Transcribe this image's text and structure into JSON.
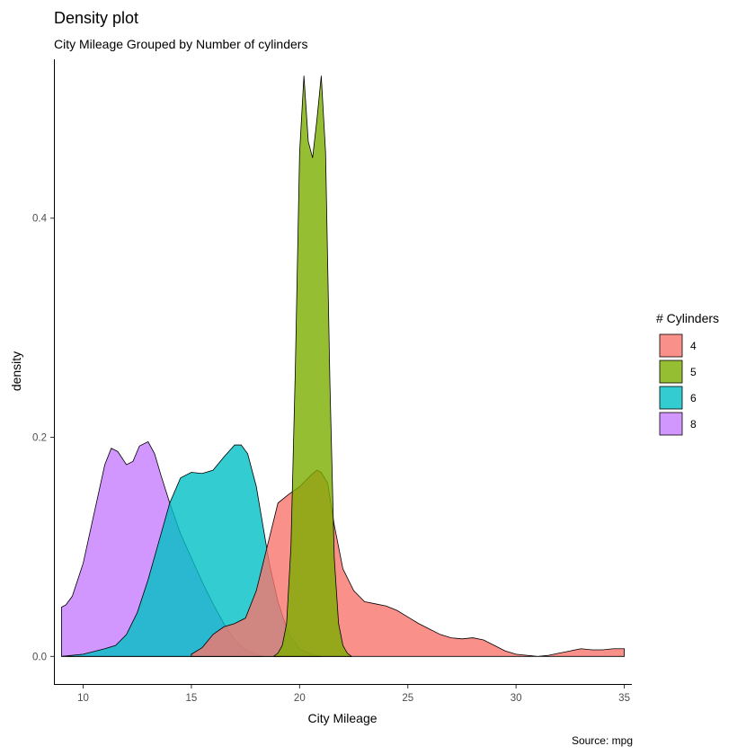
{
  "chart_data": {
    "type": "area",
    "title": "Density plot",
    "subtitle": "City Mileage Grouped by Number of cylinders",
    "xlabel": "City Mileage",
    "ylabel": "density",
    "caption": "Source: mpg",
    "xlim": [
      8.65,
      35.35
    ],
    "ylim": [
      -0.026,
      0.545
    ],
    "xticks": [
      10,
      15,
      20,
      25,
      30,
      35
    ],
    "yticks": [
      0.0,
      0.2,
      0.4
    ],
    "ytick_labels": [
      "0.0",
      "0.2",
      "0.4"
    ],
    "grid": false,
    "legend": {
      "title": "# Cylinders",
      "position": "right"
    },
    "fill_alpha": 0.8,
    "series": [
      {
        "name": "8",
        "color": "#C77CFF",
        "x": [
          9.0,
          9.2,
          9.5,
          10.0,
          10.5,
          11.0,
          11.3,
          11.6,
          12.0,
          12.3,
          12.6,
          13.0,
          13.3,
          13.6,
          14.0,
          14.5,
          15.0,
          15.5,
          16.0,
          16.5,
          17.0,
          17.5,
          18.0,
          18.3
        ],
        "y": [
          0.045,
          0.047,
          0.055,
          0.085,
          0.13,
          0.175,
          0.19,
          0.187,
          0.175,
          0.178,
          0.192,
          0.196,
          0.185,
          0.165,
          0.14,
          0.112,
          0.09,
          0.068,
          0.048,
          0.03,
          0.015,
          0.006,
          0.002,
          0.0
        ]
      },
      {
        "name": "6",
        "color": "#00BFC4",
        "x": [
          9.0,
          10.0,
          11.0,
          11.5,
          12.0,
          12.5,
          13.0,
          13.5,
          14.0,
          14.5,
          15.0,
          15.5,
          16.0,
          16.5,
          17.0,
          17.3,
          17.6,
          18.0,
          18.3,
          18.6,
          19.0,
          19.5,
          20.0,
          20.5,
          21.0
        ],
        "y": [
          0.0,
          0.002,
          0.007,
          0.01,
          0.02,
          0.04,
          0.07,
          0.105,
          0.14,
          0.163,
          0.168,
          0.167,
          0.17,
          0.182,
          0.193,
          0.193,
          0.185,
          0.155,
          0.12,
          0.085,
          0.05,
          0.02,
          0.007,
          0.002,
          0.0
        ]
      },
      {
        "name": "4",
        "color": "#F8766D",
        "x": [
          15.0,
          15.5,
          16.0,
          16.5,
          17.0,
          17.5,
          18.0,
          18.5,
          19.0,
          19.5,
          20.0,
          20.5,
          20.8,
          21.0,
          21.3,
          21.6,
          22.0,
          22.5,
          23.0,
          23.5,
          24.0,
          24.5,
          25.0,
          25.5,
          26.0,
          26.5,
          27.0,
          27.5,
          28.0,
          28.5,
          29.0,
          29.5,
          30.0,
          30.5,
          31.0,
          31.5,
          32.0,
          32.5,
          33.0,
          33.5,
          34.0,
          34.5,
          35.0
        ],
        "y": [
          0.002,
          0.008,
          0.02,
          0.027,
          0.03,
          0.035,
          0.06,
          0.1,
          0.14,
          0.148,
          0.155,
          0.165,
          0.17,
          0.168,
          0.158,
          0.12,
          0.08,
          0.06,
          0.05,
          0.048,
          0.046,
          0.042,
          0.036,
          0.03,
          0.025,
          0.02,
          0.017,
          0.016,
          0.017,
          0.015,
          0.01,
          0.005,
          0.002,
          0.001,
          0.0,
          0.001,
          0.003,
          0.005,
          0.007,
          0.006,
          0.006,
          0.007,
          0.007
        ]
      },
      {
        "name": "5",
        "color": "#7CAE00",
        "x": [
          18.8,
          19.0,
          19.2,
          19.4,
          19.6,
          19.8,
          20.0,
          20.2,
          20.4,
          20.6,
          20.8,
          21.0,
          21.2,
          21.4,
          21.6,
          21.8,
          22.0,
          22.2,
          22.4
        ],
        "y": [
          0.0,
          0.003,
          0.01,
          0.03,
          0.1,
          0.26,
          0.46,
          0.53,
          0.47,
          0.455,
          0.49,
          0.53,
          0.46,
          0.25,
          0.09,
          0.03,
          0.01,
          0.003,
          0.0
        ]
      }
    ],
    "legend_order": [
      "4",
      "5",
      "6",
      "8"
    ]
  }
}
